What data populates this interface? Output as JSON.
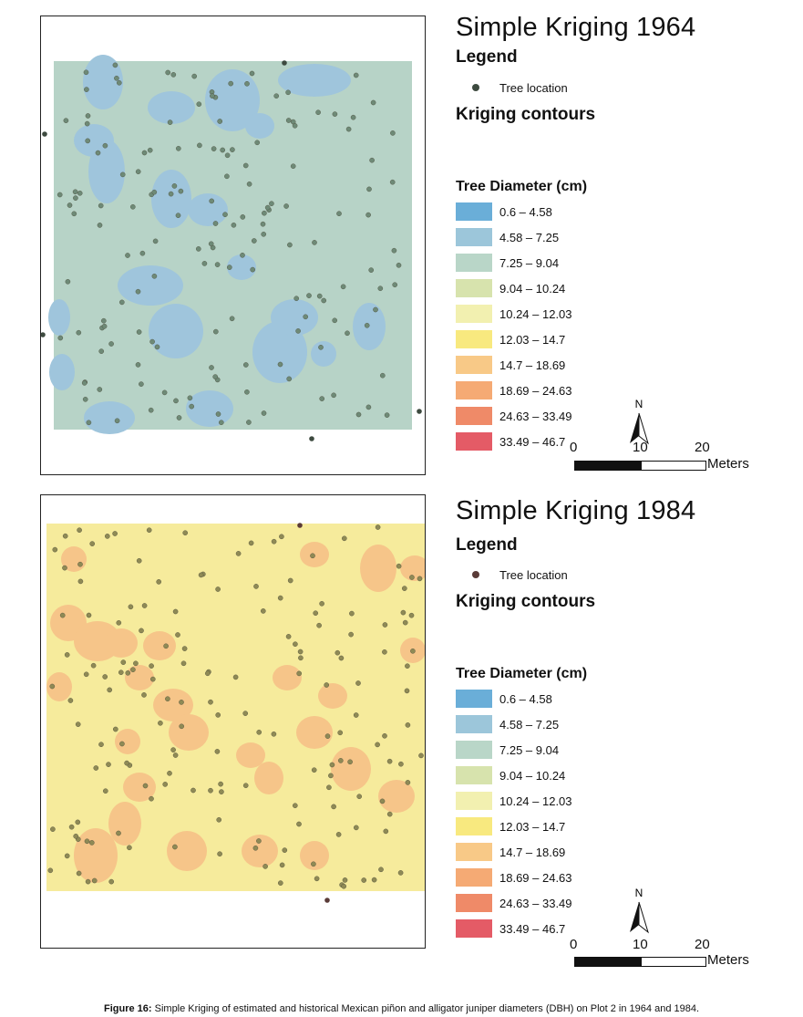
{
  "panels": [
    {
      "title": "Simple Kriging 1964",
      "legend_heading": "Legend",
      "tree_location_label": "Tree location",
      "contours_heading": "Kriging contours",
      "diameter_heading": "Tree Diameter (cm)",
      "background_color": "#b7d3c7",
      "blob_color": "#9fc5dc",
      "point_color": "#6e8a77"
    },
    {
      "title": "Simple Kriging 1984",
      "legend_heading": "Legend",
      "tree_location_label": "Tree location",
      "contours_heading": "Kriging contours",
      "diameter_heading": "Tree Diameter (cm)",
      "background_color": "#f6eb9c",
      "blob_color": "#f6c589",
      "point_color": "#8f8a55"
    }
  ],
  "diameter_classes": [
    {
      "label": "0.6 – 4.58",
      "color": "#6aaed8"
    },
    {
      "label": "4.58 – 7.25",
      "color": "#9cc6da"
    },
    {
      "label": "7.25 – 9.04",
      "color": "#b9d6c8"
    },
    {
      "label": "9.04 – 10.24",
      "color": "#d7e3ad"
    },
    {
      "label": "10.24 – 12.03",
      "color": "#f2f0b0"
    },
    {
      "label": "12.03 – 14.7",
      "color": "#f8e97f"
    },
    {
      "label": "14.7 – 18.69",
      "color": "#f8c987"
    },
    {
      "label": "18.69 – 24.63",
      "color": "#f5aa74"
    },
    {
      "label": "24.63 – 33.49",
      "color": "#ef8a68"
    },
    {
      "label": "33.49 – 46.7",
      "color": "#e45b66"
    }
  ],
  "scale_bar": {
    "ticks": [
      "0",
      "10",
      "20"
    ],
    "unit": "Meters"
  },
  "north_label": "N",
  "caption": {
    "label": "Figure 16:",
    "text": "Simple Kriging of estimated and historical Mexican piñon and alligator juniper diameters (DBH) on Plot 2 in 1964 and 1984."
  }
}
